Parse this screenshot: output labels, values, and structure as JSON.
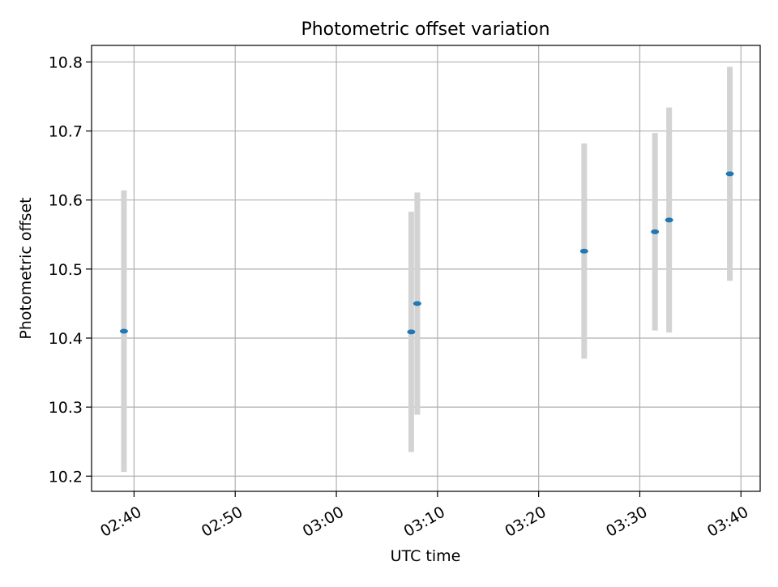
{
  "chart_data": {
    "type": "scatter",
    "title": "Photometric offset variation",
    "xlabel": "UTC time",
    "ylabel": "Photometric offset",
    "x_ticks": [
      "02:40",
      "02:50",
      "03:00",
      "03:10",
      "03:20",
      "03:30",
      "03:40"
    ],
    "x_tick_minutes": [
      160,
      170,
      180,
      190,
      200,
      210,
      220
    ],
    "y_ticks": [
      "10.2",
      "10.3",
      "10.4",
      "10.5",
      "10.6",
      "10.7",
      "10.8"
    ],
    "xlim": [
      "02:35.8",
      "03:41.9"
    ],
    "ylim": [
      10.178,
      10.824
    ],
    "grid": true,
    "marker_color": "#1f77b4",
    "errorbar_color": "#d3d3d3",
    "series": [
      {
        "x": [
          "02:39.0",
          "03:07.4",
          "03:08.0",
          "03:24.5",
          "03:31.5",
          "03:32.9",
          "03:38.9"
        ],
        "y": [
          10.41,
          10.409,
          10.45,
          10.526,
          10.554,
          10.571,
          10.638
        ],
        "yerr": [
          0.204,
          0.174,
          0.161,
          0.156,
          0.143,
          0.163,
          0.155
        ]
      }
    ]
  }
}
